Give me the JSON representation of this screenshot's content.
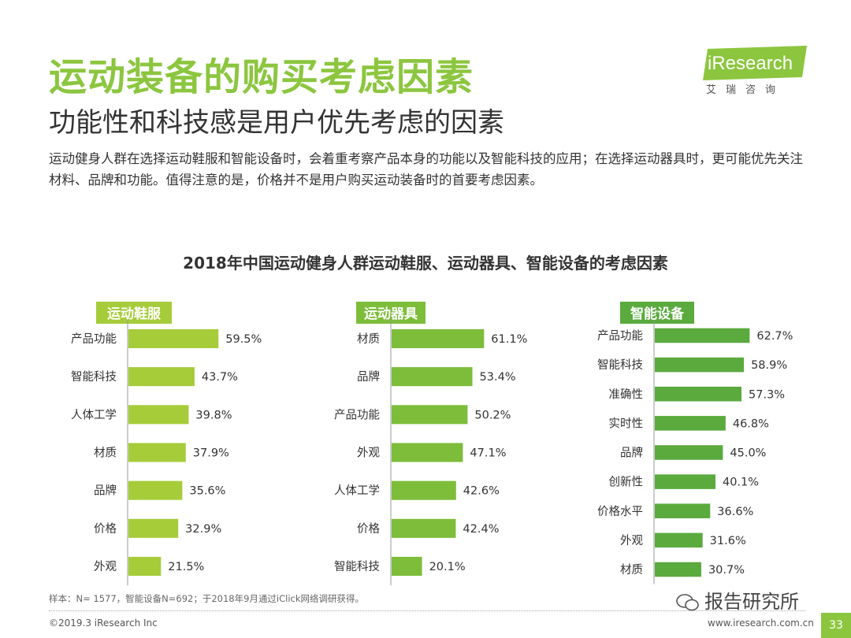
{
  "header": {
    "title": "运动装备的购买考虑因素",
    "subtitle": "功能性和科技感是用户优先考虑的因素",
    "description": "运动健身人群在选择运动鞋服和智能设备时，会着重考察产品本身的功能以及智能科技的应用；在选择运动器具时，更可能优先关注材料、品牌和功能。值得注意的是，价格并不是用户购买运动装备时的首要考虑因素。"
  },
  "logo": {
    "text": "iResearch",
    "sub": "艾瑞咨询"
  },
  "colors": {
    "accent": "#8cc63f",
    "panel1": "#a6cc3a",
    "panel2": "#7dbd3a",
    "panel3": "#5aaa3e"
  },
  "chart_title": "2018年中国运动健身人群运动鞋服、运动器具、智能设备的考虑因素",
  "chart_data": [
    {
      "type": "bar",
      "orientation": "horizontal",
      "title": "运动鞋服",
      "unit": "%",
      "categories": [
        "产品功能",
        "智能科技",
        "人体工学",
        "材质",
        "品牌",
        "价格",
        "外观"
      ],
      "values": [
        59.5,
        43.7,
        39.8,
        37.9,
        35.6,
        32.9,
        21.5
      ],
      "labels": [
        "59.5%",
        "43.7%",
        "39.8%",
        "37.9%",
        "35.6%",
        "32.9%",
        "21.5%"
      ]
    },
    {
      "type": "bar",
      "orientation": "horizontal",
      "title": "运动器具",
      "unit": "%",
      "categories": [
        "材质",
        "品牌",
        "产品功能",
        "外观",
        "人体工学",
        "价格",
        "智能科技"
      ],
      "values": [
        61.1,
        53.4,
        50.2,
        47.1,
        42.6,
        42.4,
        20.1
      ],
      "labels": [
        "61.1%",
        "53.4%",
        "50.2%",
        "47.1%",
        "42.6%",
        "42.4%",
        "20.1%"
      ]
    },
    {
      "type": "bar",
      "orientation": "horizontal",
      "title": "智能设备",
      "unit": "%",
      "categories": [
        "产品功能",
        "智能科技",
        "准确性",
        "实时性",
        "品牌",
        "创新性",
        "价格水平",
        "外观",
        "材质"
      ],
      "values": [
        62.7,
        58.9,
        57.3,
        46.8,
        45.0,
        40.1,
        36.6,
        31.6,
        30.7
      ],
      "labels": [
        "62.7%",
        "58.9%",
        "57.3%",
        "46.8%",
        "45.0%",
        "40.1%",
        "36.6%",
        "31.6%",
        "30.7%"
      ]
    }
  ],
  "footnote": "样本：N= 1577，智能设备N=692；于2018年9月通过iClick网络调研获得。",
  "footer": {
    "copyright": "©2019.3  iResearch Inc",
    "website": "www.iresearch.com.cn",
    "page": "33"
  },
  "watermark": "报告研究所"
}
